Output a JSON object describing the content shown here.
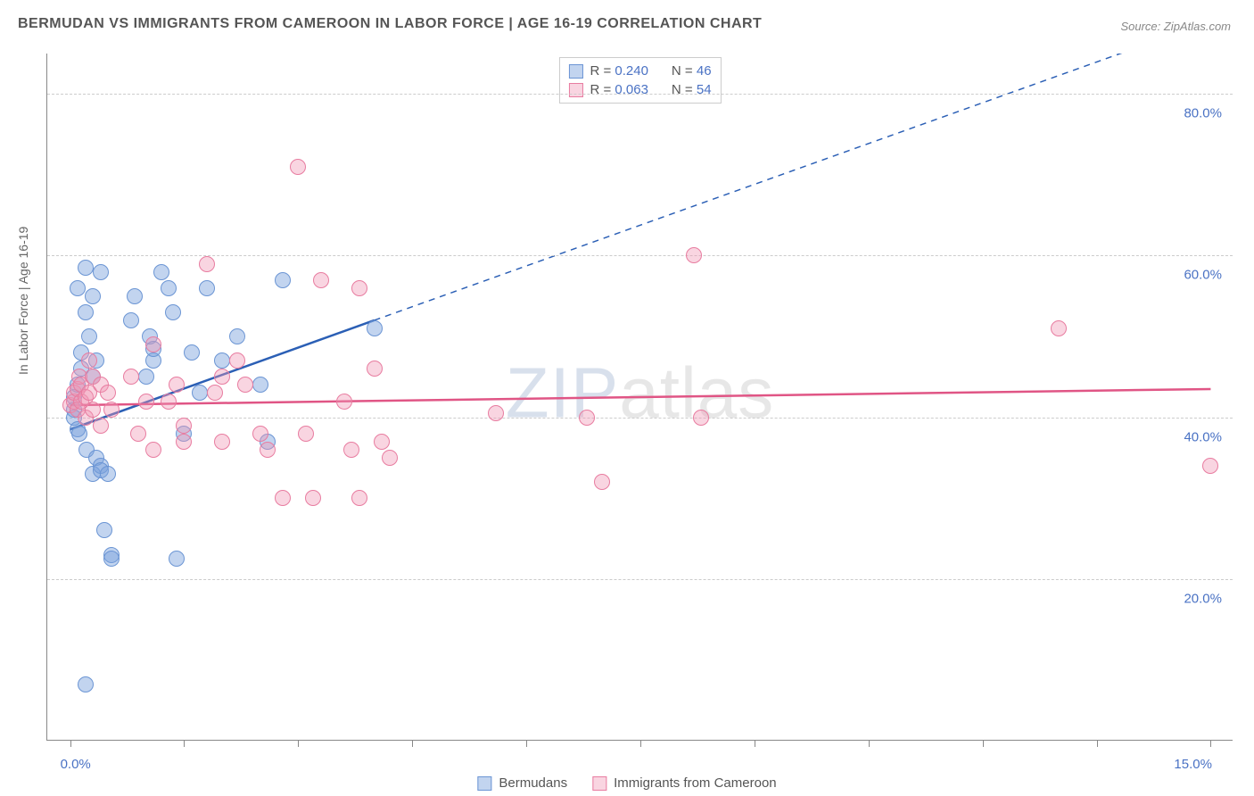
{
  "title": "BERMUDAN VS IMMIGRANTS FROM CAMEROON IN LABOR FORCE | AGE 16-19 CORRELATION CHART",
  "source": "Source: ZipAtlas.com",
  "ylabel": "In Labor Force | Age 16-19",
  "watermark_z": "ZIP",
  "watermark_rest": "atlas",
  "chart": {
    "type": "scatter",
    "background_color": "#ffffff",
    "grid_color": "#cccccc",
    "xlim": [
      -0.3,
      15.3
    ],
    "ylim": [
      0,
      85
    ],
    "ygridlines": [
      20,
      40,
      60,
      80
    ],
    "xtick_positions": [
      0,
      1.5,
      3,
      4.5,
      6,
      7.5,
      9,
      10.5,
      12,
      13.5,
      15
    ],
    "xtick_labels": {
      "start": "0.0%",
      "end": "15.0%"
    },
    "ytick_labels": [
      "20.0%",
      "40.0%",
      "60.0%",
      "80.0%"
    ],
    "point_radius": 9,
    "series": [
      {
        "name": "Bermudans",
        "color_fill": "rgba(120,160,220,0.45)",
        "color_stroke": "#6b95d4",
        "R": "0.240",
        "N": "46",
        "trend": {
          "x1": 0,
          "y1": 38.5,
          "x2": 4,
          "y2": 52,
          "color": "#2b5fb5",
          "width": 2.5,
          "dash_x2": 15,
          "dash_y2": 89
        },
        "points": [
          [
            0.05,
            41
          ],
          [
            0.05,
            42.5
          ],
          [
            0.05,
            40
          ],
          [
            0.1,
            56
          ],
          [
            0.1,
            44
          ],
          [
            0.1,
            38.5
          ],
          [
            0.12,
            38
          ],
          [
            0.15,
            48
          ],
          [
            0.15,
            46
          ],
          [
            0.2,
            58.5
          ],
          [
            0.2,
            53
          ],
          [
            0.22,
            36
          ],
          [
            0.25,
            50
          ],
          [
            0.3,
            55
          ],
          [
            0.3,
            45
          ],
          [
            0.3,
            33
          ],
          [
            0.35,
            47
          ],
          [
            0.35,
            35
          ],
          [
            0.4,
            58
          ],
          [
            0.4,
            34
          ],
          [
            0.4,
            33.5
          ],
          [
            0.45,
            26
          ],
          [
            0.5,
            33
          ],
          [
            0.55,
            23
          ],
          [
            0.55,
            22.5
          ],
          [
            0.2,
            7
          ],
          [
            0.8,
            52
          ],
          [
            0.85,
            55
          ],
          [
            1.0,
            45
          ],
          [
            1.05,
            50
          ],
          [
            1.1,
            47
          ],
          [
            1.1,
            48.5
          ],
          [
            1.2,
            58
          ],
          [
            1.3,
            56
          ],
          [
            1.35,
            53
          ],
          [
            1.4,
            22.5
          ],
          [
            1.5,
            38
          ],
          [
            1.6,
            48
          ],
          [
            1.7,
            43
          ],
          [
            1.8,
            56
          ],
          [
            2.0,
            47
          ],
          [
            2.2,
            50
          ],
          [
            2.5,
            44
          ],
          [
            2.6,
            37
          ],
          [
            2.8,
            57
          ],
          [
            4.0,
            51
          ]
        ]
      },
      {
        "name": "Immigrants from Cameroon",
        "color_fill": "rgba(240,150,180,0.40)",
        "color_stroke": "#e87ca0",
        "R": "0.063",
        "N": "54",
        "trend": {
          "x1": 0,
          "y1": 41.5,
          "x2": 15,
          "y2": 43.5,
          "color": "#e05585",
          "width": 2.5
        },
        "points": [
          [
            0.0,
            41.5
          ],
          [
            0.05,
            42
          ],
          [
            0.05,
            43
          ],
          [
            0.1,
            43.5
          ],
          [
            0.1,
            41
          ],
          [
            0.12,
            45
          ],
          [
            0.15,
            42
          ],
          [
            0.15,
            44
          ],
          [
            0.2,
            42.5
          ],
          [
            0.2,
            40
          ],
          [
            0.25,
            47
          ],
          [
            0.25,
            43
          ],
          [
            0.3,
            45
          ],
          [
            0.3,
            41
          ],
          [
            0.4,
            44
          ],
          [
            0.4,
            39
          ],
          [
            0.5,
            43
          ],
          [
            0.55,
            41
          ],
          [
            0.8,
            45
          ],
          [
            0.9,
            38
          ],
          [
            1.0,
            42
          ],
          [
            1.1,
            49
          ],
          [
            1.1,
            36
          ],
          [
            1.3,
            42
          ],
          [
            1.4,
            44
          ],
          [
            1.5,
            39
          ],
          [
            1.5,
            37
          ],
          [
            1.8,
            59
          ],
          [
            1.9,
            43
          ],
          [
            2.0,
            45
          ],
          [
            2.0,
            37
          ],
          [
            2.2,
            47
          ],
          [
            2.3,
            44
          ],
          [
            2.5,
            38
          ],
          [
            2.6,
            36
          ],
          [
            2.8,
            30
          ],
          [
            3.0,
            71
          ],
          [
            3.1,
            38
          ],
          [
            3.2,
            30
          ],
          [
            3.3,
            57
          ],
          [
            3.6,
            42
          ],
          [
            3.7,
            36
          ],
          [
            3.8,
            56
          ],
          [
            3.8,
            30
          ],
          [
            4.0,
            46
          ],
          [
            4.1,
            37
          ],
          [
            4.2,
            35
          ],
          [
            5.6,
            40.5
          ],
          [
            6.8,
            40
          ],
          [
            7.0,
            32
          ],
          [
            8.2,
            60
          ],
          [
            8.3,
            40
          ],
          [
            13.0,
            51
          ],
          [
            15.0,
            34
          ]
        ]
      }
    ]
  },
  "legend_top": {
    "rows": [
      {
        "swatch_fill": "rgba(120,160,220,0.45)",
        "swatch_stroke": "#6b95d4",
        "r_label": "R = ",
        "r_val": "0.240",
        "n_label": "N = ",
        "n_val": "46"
      },
      {
        "swatch_fill": "rgba(240,150,180,0.40)",
        "swatch_stroke": "#e87ca0",
        "r_label": "R = ",
        "r_val": "0.063",
        "n_label": "N = ",
        "n_val": "54"
      }
    ]
  },
  "legend_bottom": {
    "items": [
      {
        "swatch_fill": "rgba(120,160,220,0.45)",
        "swatch_stroke": "#6b95d4",
        "label": "Bermudans"
      },
      {
        "swatch_fill": "rgba(240,150,180,0.40)",
        "swatch_stroke": "#e87ca0",
        "label": "Immigrants from Cameroon"
      }
    ]
  }
}
